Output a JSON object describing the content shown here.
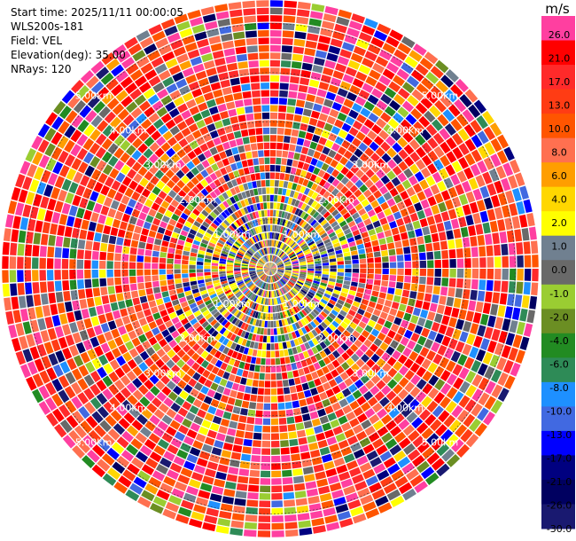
{
  "info": {
    "start_time": "Start time: 2025/11/11 00:00:05",
    "instrument": "WLS200s-181",
    "field": "Field: VEL",
    "elevation": "Elevation(deg): 35.00",
    "nrays": "NRays: 120"
  },
  "chart_data": {
    "type": "ppi",
    "field": "VEL",
    "nrays": 120,
    "max_range_km": 5.5,
    "range_ring_labels_km": [
      "1.00km",
      "2.00km",
      "3.00km",
      "4.00km",
      "5.00km"
    ],
    "colorbar": {
      "unit": "m/s",
      "tick_labels": [
        "26.0",
        "21.0",
        "17.0",
        "13.0",
        "10.0",
        "8.0",
        "6.0",
        "4.0",
        "2.0",
        "1.0",
        "0.0",
        "-1.0",
        "-2.0",
        "-4.0",
        "-6.0",
        "-8.0",
        "-10.0",
        "-13.0",
        "-17.0",
        "-21.0",
        "-26.0",
        "-30.0"
      ],
      "colors": [
        "#ff3fa0",
        "#ff0000",
        "#ff2a2a",
        "#ff3c14",
        "#ff5500",
        "#ff7050",
        "#ff9e00",
        "#ffd700",
        "#ffff00",
        "#708090",
        "#696969",
        "#9acd32",
        "#6b8e23",
        "#228b22",
        "#2e8b57",
        "#1e90ff",
        "#4169e1",
        "#0000ff",
        "#000080",
        "#000060",
        "#191970"
      ]
    }
  }
}
